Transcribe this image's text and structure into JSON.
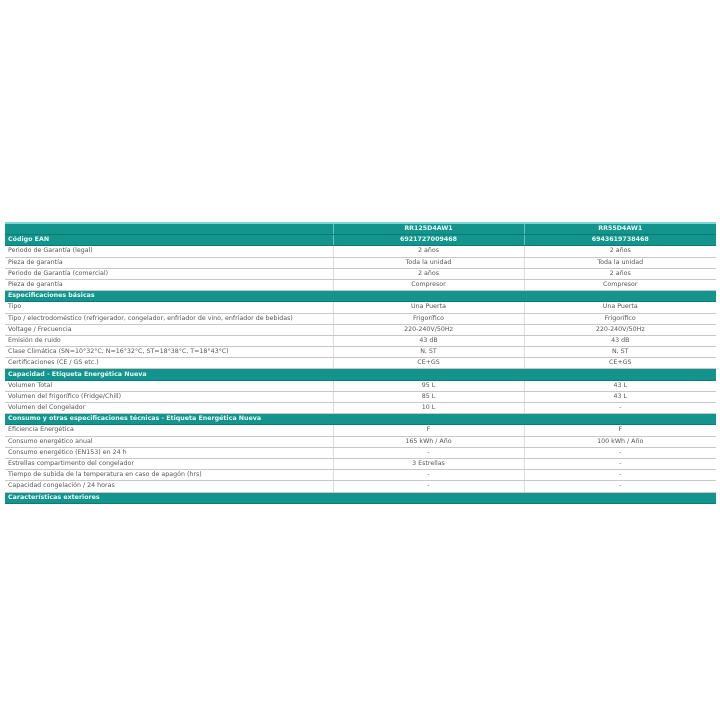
{
  "header": {
    "label": "",
    "models": [
      "RR125D4AW1",
      "RR55D4AW1"
    ]
  },
  "ean": {
    "label": "Código EAN",
    "values": [
      "6921727009468",
      "6943619738468"
    ]
  },
  "sections": [
    {
      "title": "",
      "rows": [
        {
          "label": "Periodo de Garantía (legal)",
          "values": [
            "2 años",
            "2 años"
          ]
        },
        {
          "label": "Pieza de garantía",
          "values": [
            "Toda la unidad",
            "Toda la unidad"
          ]
        },
        {
          "label": "Periodo de Garantía (comercial)",
          "values": [
            "2 años",
            "2 años"
          ]
        },
        {
          "label": "Pieza de garantía",
          "values": [
            "Compresor",
            "Compresor"
          ]
        }
      ]
    },
    {
      "title": "Especificaciones básicas",
      "rows": [
        {
          "label": "Tipo",
          "values": [
            "Una Puerta",
            "Una Puerta"
          ]
        },
        {
          "label": "Tipo / electrodoméstico (refrigerador, congelador, enfriador de vino, enfriador de bebidas)",
          "values": [
            "Frigorífico",
            "Frigorífico"
          ]
        },
        {
          "label": "Voltage / Frecuencia",
          "values": [
            "220-240V/50Hz",
            "220-240V/50Hz"
          ]
        },
        {
          "label": "Emisión de ruido",
          "values": [
            "43 dB",
            "43 dB"
          ]
        },
        {
          "label": "Clase Climática (SN=10°32°C, N=16°32°C, ST=18°38°C, T=18°43°C)",
          "values": [
            "N, ST",
            "N, ST"
          ]
        },
        {
          "label": "Certificaciones (CE / GS etc.)",
          "values": [
            "CE+GS",
            "CE+GS"
          ]
        }
      ]
    },
    {
      "title": "Capacidad - Etiqueta Energética Nueva",
      "rows": [
        {
          "label": "Volumen Total",
          "values": [
            "95 L",
            "43 L"
          ]
        },
        {
          "label": "Volumen del frigorífico (Fridge/Chill)",
          "values": [
            "85 L",
            "43 L"
          ]
        },
        {
          "label": "Volumen del Congelador",
          "values": [
            "10 L",
            "-"
          ]
        }
      ]
    },
    {
      "title": "Consumo y otras especificaciones técnicas - Etiqueta Energética Nueva",
      "rows": [
        {
          "label": "Eficiencia Energética",
          "values": [
            "F",
            "F"
          ]
        },
        {
          "label": "Consumo energético anual",
          "values": [
            "165 kWh / Año",
            "100 kWh / Año"
          ]
        },
        {
          "label": "Consumo energético (EN153) en 24 h",
          "values": [
            "-",
            "-"
          ]
        },
        {
          "label": "Estrellas compartimento del congelador",
          "values": [
            "3 Estrellas",
            "-"
          ]
        },
        {
          "label": "Tiempo de subida de la temperatura en caso de apagón (hrs)",
          "values": [
            "-",
            "-"
          ]
        },
        {
          "label": "Capacidad congelación / 24 horas",
          "values": [
            "-",
            "-"
          ]
        }
      ]
    },
    {
      "title": "Características exteriores",
      "rows": []
    }
  ],
  "colors": {
    "teal": "#13958e"
  }
}
